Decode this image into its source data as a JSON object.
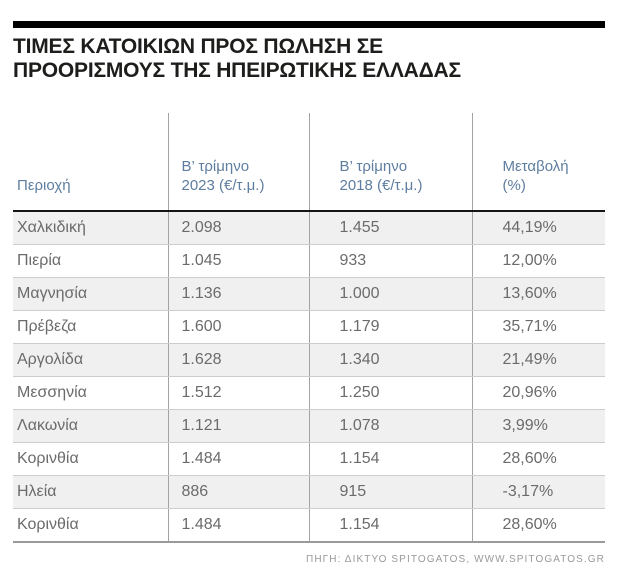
{
  "header": {
    "title": "ΤΙΜΕΣ ΚΑΤΟΙΚΙΩΝ ΠΡΟΣ ΠΩΛΗΣΗ ΣΕ\nΠΡΟΟΡΙΣΜΟΥΣ ΤΗΣ ΗΠΕΙΡΩΤΙΚΗΣ ΕΛΛΑΔΑΣ"
  },
  "table": {
    "headers": {
      "region": "Περιοχή",
      "q2_2023": "Β’ τρίμηνο\n2023 (€/τ.μ.)",
      "q2_2018": "Β’ τρίμηνο\n2018 (€/τ.μ.)",
      "change": "Μεταβολή\n(%)"
    }
  },
  "footer": {
    "source": "ΠΗΓΗ: ΔΙΚΤΥΟ SPITOGATOS, WWW.SPITOGATOS.GR"
  },
  "colors": {
    "header_text": "#5e7d9f",
    "body_text": "#6b6b6b",
    "stripe_row": "#f0f0f0",
    "top_bar": "#000000",
    "header_rule": "#151515",
    "row_separator": "#cdcdcd",
    "bottom_rule": "#9a9a9a",
    "source_text": "#999999"
  },
  "chart_data": {
    "type": "table",
    "title": "ΤΙΜΕΣ ΚΑΤΟΙΚΙΩΝ ΠΡΟΣ ΠΩΛΗΣΗ ΣΕ ΠΡΟΟΡΙΣΜΟΥΣ ΤΗΣ ΗΠΕΙΡΩΤΙΚΗΣ ΕΛΛΑΔΑΣ",
    "columns": [
      "Περιοχή",
      "Β’ τρίμηνο 2023 (€/τ.μ.)",
      "Β’ τρίμηνο 2018 (€/τ.μ.)",
      "Μεταβολή (%)"
    ],
    "rows": [
      [
        "Χαλκιδική",
        "2.098",
        "1.455",
        "44,19%"
      ],
      [
        "Πιερία",
        "1.045",
        "933",
        "12,00%"
      ],
      [
        "Μαγνησία",
        "1.136",
        "1.000",
        "13,60%"
      ],
      [
        "Πρέβεζα",
        "1.600",
        "1.179",
        "35,71%"
      ],
      [
        "Αργολίδα",
        "1.628",
        "1.340",
        "21,49%"
      ],
      [
        "Μεσσηνία",
        "1.512",
        "1.250",
        "20,96%"
      ],
      [
        "Λακωνία",
        "1.121",
        "1.078",
        "3,99%"
      ],
      [
        "Κορινθία",
        "1.484",
        "1.154",
        "28,60%"
      ],
      [
        "Ηλεία",
        "886",
        "915",
        "-3,17%"
      ],
      [
        "Κορινθία",
        "1.484",
        "1.154",
        "28,60%"
      ]
    ],
    "source": "ΠΗΓΗ: ΔΙΚΤΥΟ SPITOGATOS, WWW.SPITOGATOS.GR",
    "layout": {
      "striped_rows": "odd",
      "header_position": "top"
    }
  }
}
